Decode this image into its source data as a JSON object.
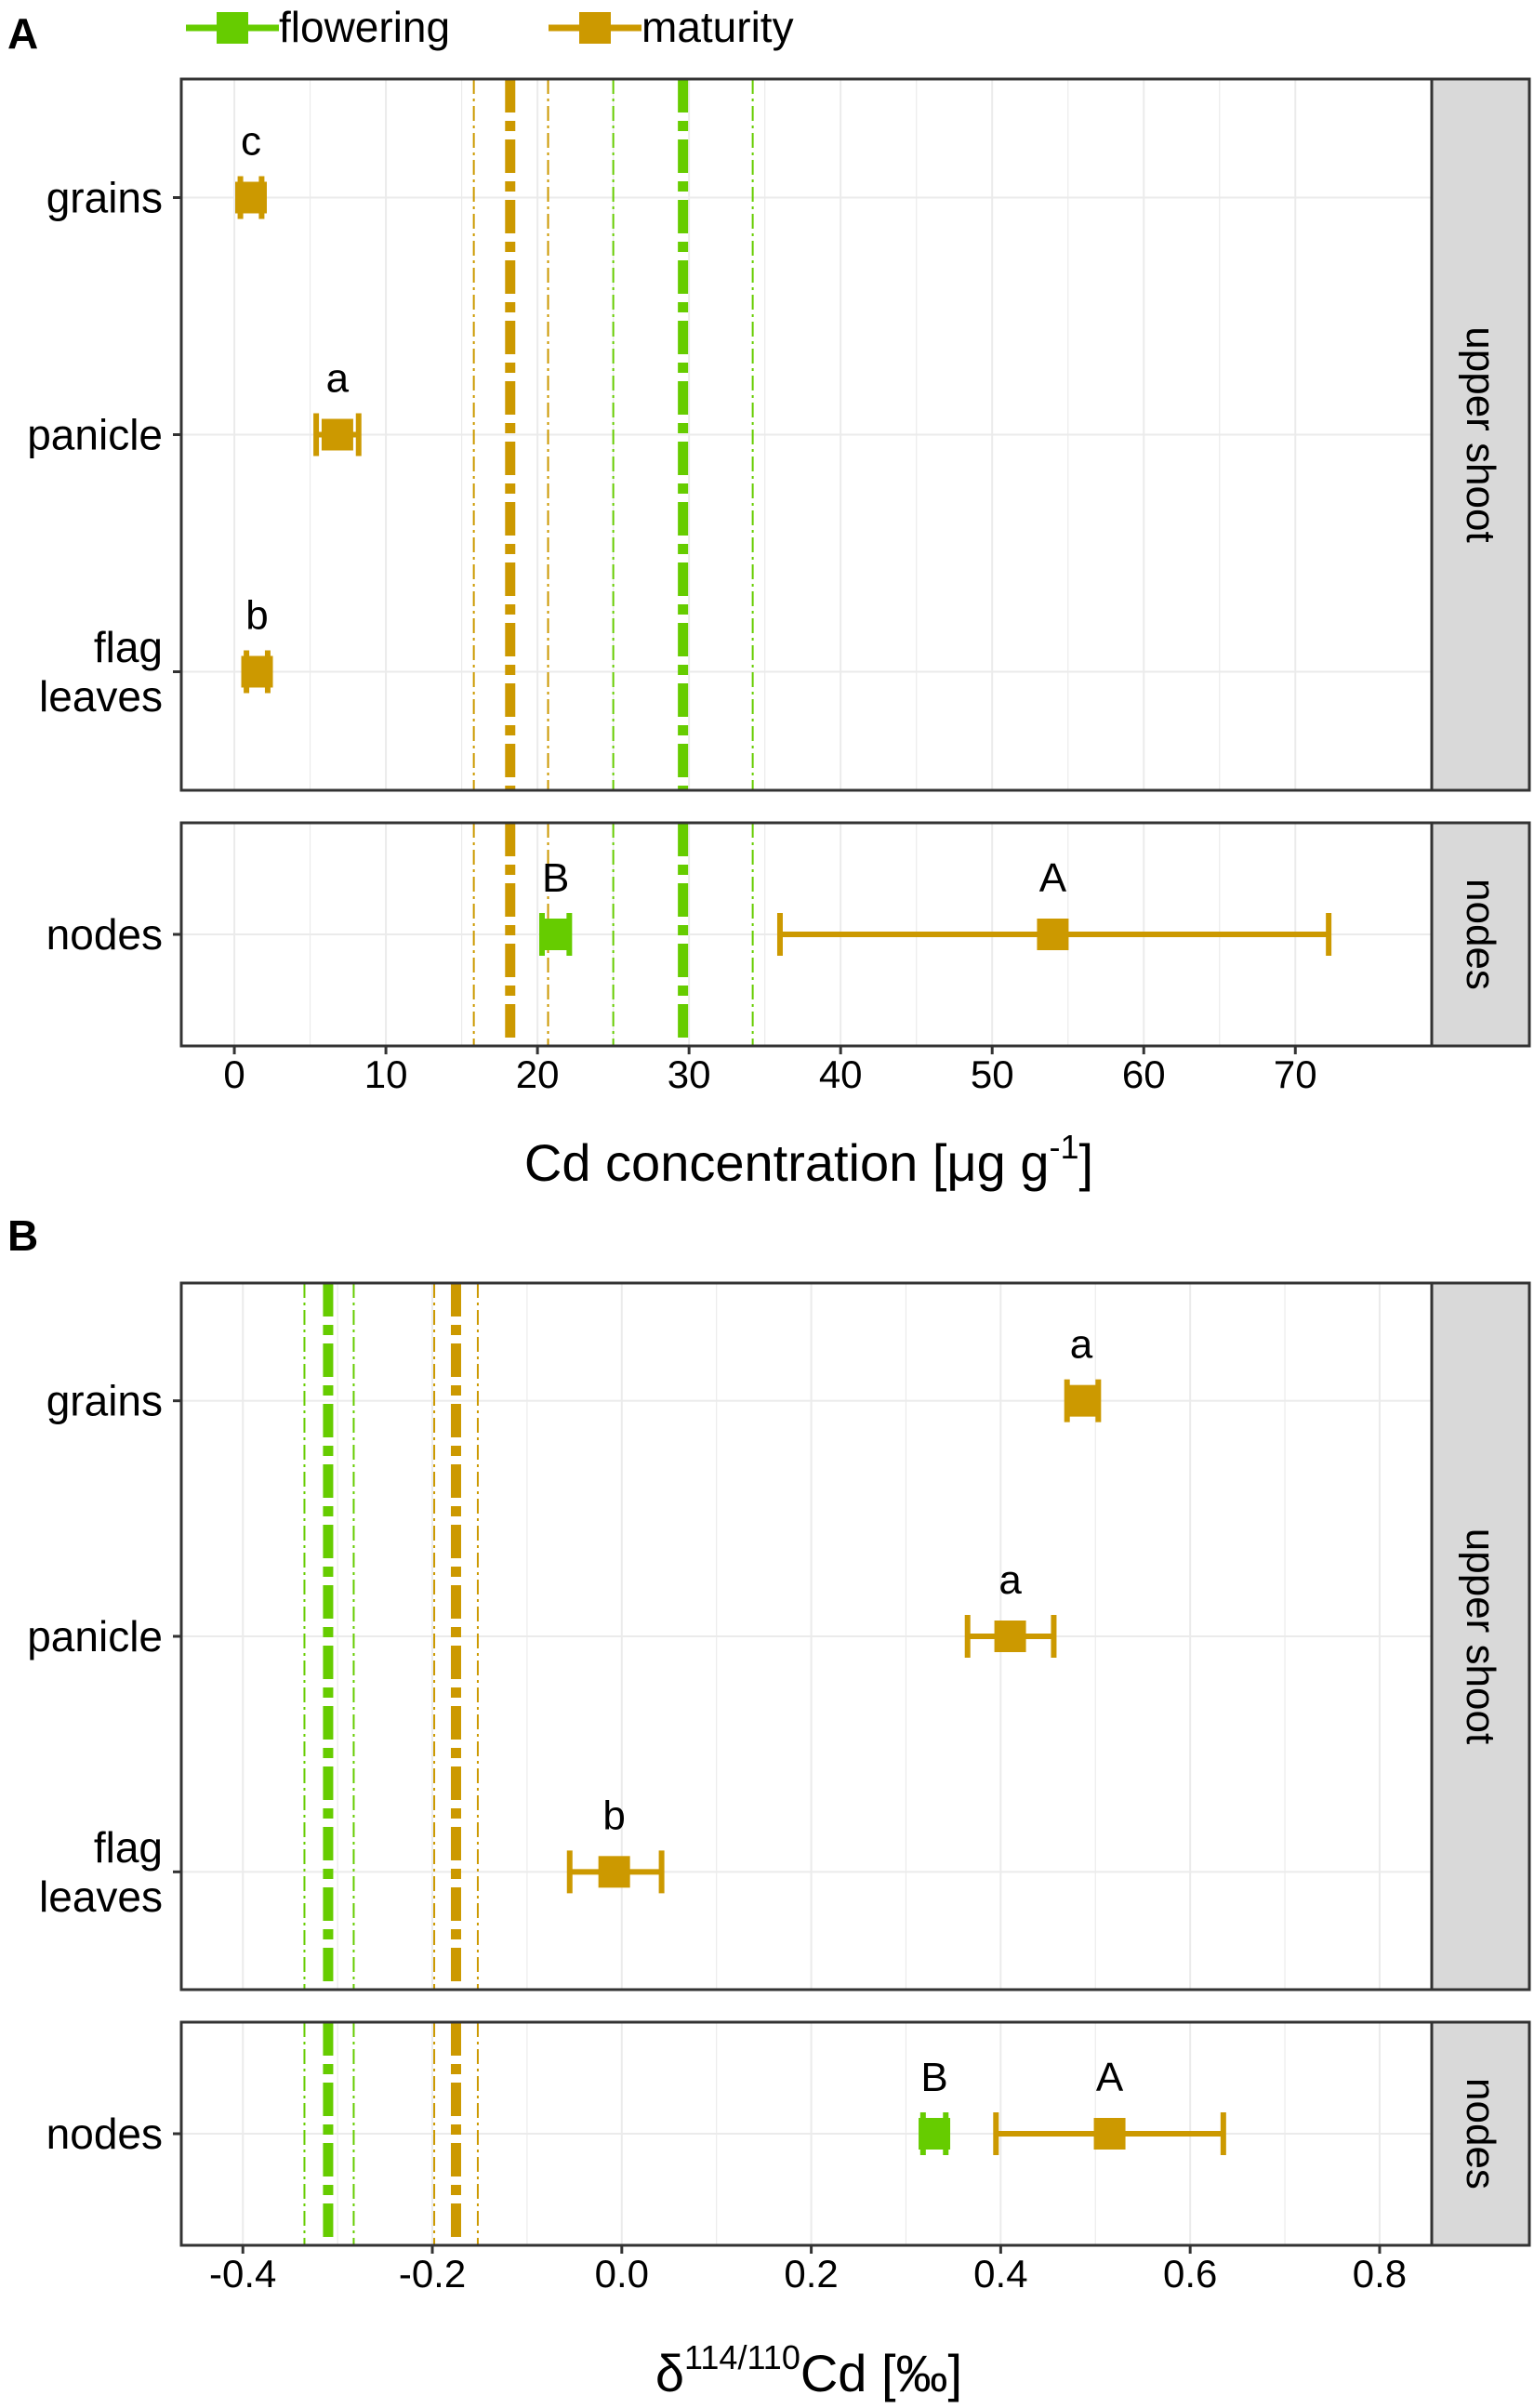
{
  "colors": {
    "flowering": "#66cc00",
    "maturity": "#cc9900",
    "strip_bg": "#d9d9d9",
    "grid": "#ebebeb",
    "frame": "#333333"
  },
  "legend": [
    {
      "name": "flowering",
      "color": "#66cc00"
    },
    {
      "name": "maturity",
      "color": "#cc9900"
    }
  ],
  "chart_data": [
    {
      "id": "A",
      "panel_label": "A",
      "type": "errorbar",
      "xlabel_main": "Cd concentration [",
      "xlabel_unit": "μg g",
      "xlabel_sup": "-1",
      "xlabel_end": "]",
      "xlim": [
        -3.5,
        79
      ],
      "xticks": [
        0,
        10,
        20,
        30,
        40,
        50,
        60,
        70
      ],
      "xtick_labels": [
        "0",
        "10",
        "20",
        "30",
        "40",
        "50",
        "60",
        "70"
      ],
      "facets": [
        {
          "strip": "upper shoot",
          "categories": [
            {
              "label_lines": [
                "grains"
              ],
              "points": [
                {
                  "series": "maturity",
                  "value": 1.1,
                  "lo": 0.4,
                  "hi": 1.8,
                  "letter": "c"
                }
              ]
            },
            {
              "label_lines": [
                "panicle"
              ],
              "points": [
                {
                  "series": "maturity",
                  "value": 6.8,
                  "lo": 5.4,
                  "hi": 8.2,
                  "letter": "a"
                }
              ]
            },
            {
              "label_lines": [
                "flag",
                "leaves"
              ],
              "points": [
                {
                  "series": "maturity",
                  "value": 1.5,
                  "lo": 0.8,
                  "hi": 2.2,
                  "letter": "b"
                }
              ]
            }
          ]
        },
        {
          "strip": "nodes",
          "categories": [
            {
              "label_lines": [
                "nodes"
              ],
              "points": [
                {
                  "series": "flowering",
                  "value": 21.2,
                  "lo": 20.3,
                  "hi": 22.1,
                  "letter": "B"
                },
                {
                  "series": "maturity",
                  "value": 54.0,
                  "lo": 36.0,
                  "hi": 72.2,
                  "letter": "A"
                }
              ]
            }
          ]
        }
      ],
      "reference_lines": [
        {
          "series": "maturity",
          "mean": 18.2,
          "lo": 15.8,
          "hi": 20.7
        },
        {
          "series": "flowering",
          "mean": 29.6,
          "lo": 25.0,
          "hi": 34.2
        }
      ]
    },
    {
      "id": "B",
      "panel_label": "B",
      "type": "errorbar",
      "xlabel_main": "δ",
      "xlabel_sup": "114/110",
      "xlabel_end": "Cd [‰]",
      "xlim": [
        -0.465,
        0.855
      ],
      "xticks": [
        -0.4,
        -0.2,
        0.0,
        0.2,
        0.4,
        0.6,
        0.8
      ],
      "xtick_labels": [
        "-0.4",
        "-0.2",
        "0.0",
        "0.2",
        "0.4",
        "0.6",
        "0.8"
      ],
      "facets": [
        {
          "strip": "upper shoot",
          "categories": [
            {
              "label_lines": [
                "grains"
              ],
              "points": [
                {
                  "series": "maturity",
                  "value": 0.485,
                  "lo": 0.47,
                  "hi": 0.503,
                  "letter": "a"
                }
              ]
            },
            {
              "label_lines": [
                "panicle"
              ],
              "points": [
                {
                  "series": "maturity",
                  "value": 0.41,
                  "lo": 0.365,
                  "hi": 0.456,
                  "letter": "a"
                }
              ]
            },
            {
              "label_lines": [
                "flag",
                "leaves"
              ],
              "points": [
                {
                  "series": "maturity",
                  "value": -0.008,
                  "lo": -0.055,
                  "hi": 0.042,
                  "letter": "b"
                }
              ]
            }
          ]
        },
        {
          "strip": "nodes",
          "categories": [
            {
              "label_lines": [
                "nodes"
              ],
              "points": [
                {
                  "series": "flowering",
                  "value": 0.33,
                  "lo": 0.318,
                  "hi": 0.342,
                  "letter": "B"
                },
                {
                  "series": "maturity",
                  "value": 0.515,
                  "lo": 0.395,
                  "hi": 0.635,
                  "letter": "A"
                }
              ]
            }
          ]
        }
      ],
      "reference_lines": [
        {
          "series": "flowering",
          "mean": -0.31,
          "lo": -0.335,
          "hi": -0.283
        },
        {
          "series": "maturity",
          "mean": -0.175,
          "lo": -0.198,
          "hi": -0.152
        }
      ]
    }
  ]
}
